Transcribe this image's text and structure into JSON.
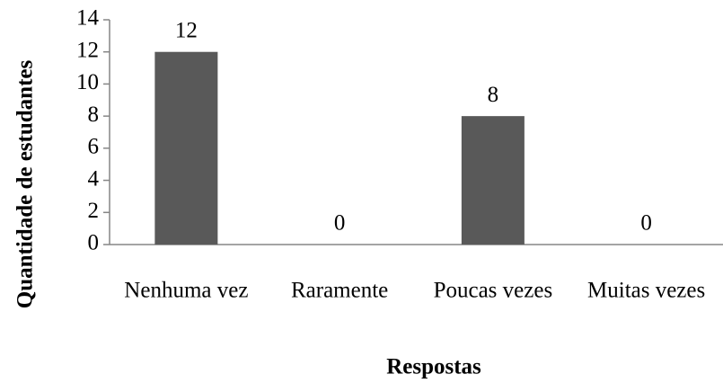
{
  "chart_data": {
    "type": "bar",
    "x_label": "Respostas",
    "y_label": "Quantidade de estudantes",
    "categories": [
      "Nenhuma vez",
      "Raramente",
      "Poucas vezes",
      "Muitas vezes"
    ],
    "values": [
      12,
      0,
      8,
      0
    ],
    "color": "#595959",
    "ylim": [
      0,
      14
    ],
    "yticks": [
      0,
      2,
      4,
      6,
      8,
      10,
      12,
      14
    ],
    "grid": false
  }
}
